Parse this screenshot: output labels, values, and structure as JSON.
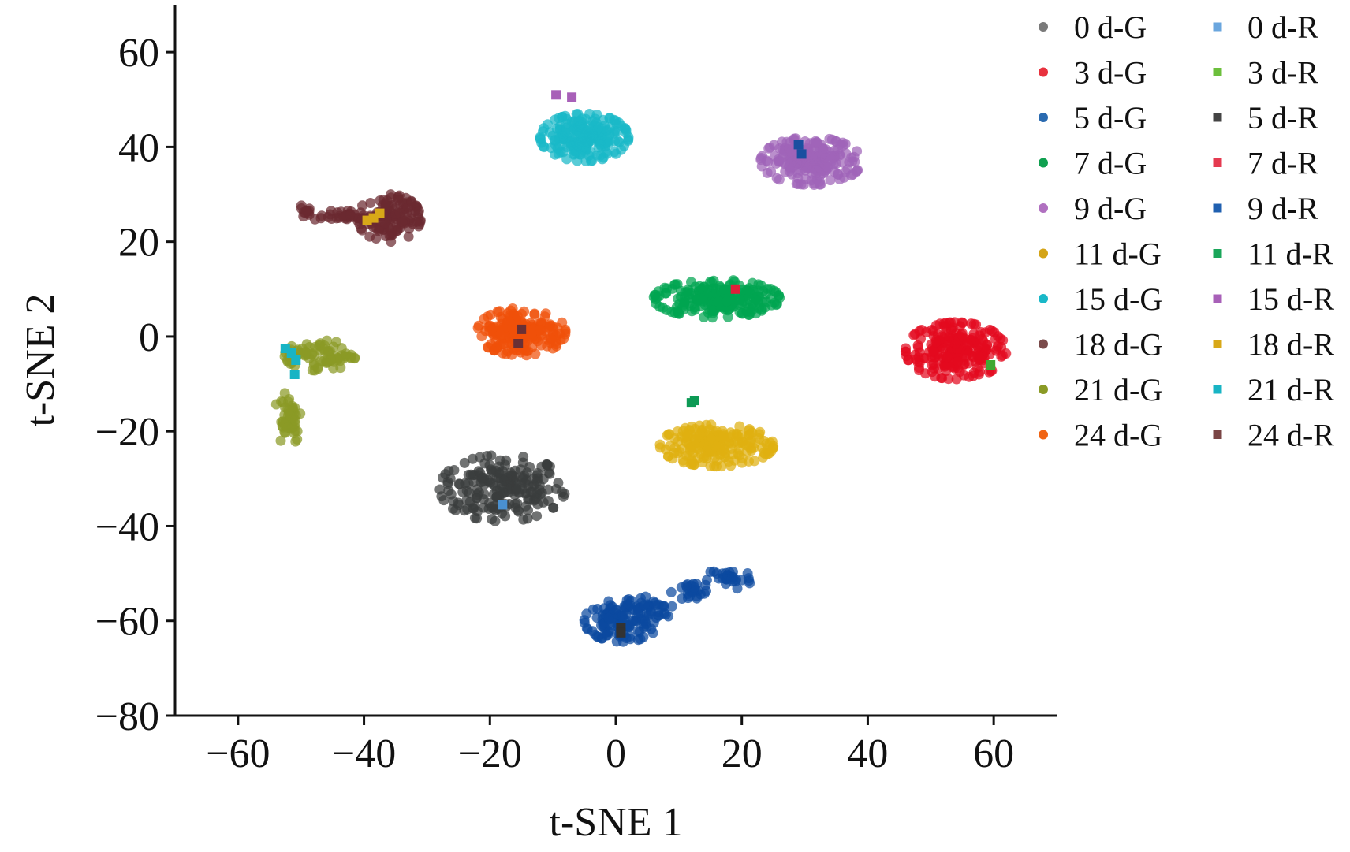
{
  "chart_data": {
    "type": "scatter",
    "title": "",
    "xlabel": "t-SNE 1",
    "ylabel": "t-SNE 2",
    "xlim": [
      -70,
      70
    ],
    "ylim": [
      -80,
      70
    ],
    "x_ticks": [
      -60,
      -40,
      -20,
      0,
      20,
      40,
      60
    ],
    "y_ticks": [
      -80,
      -60,
      -40,
      -20,
      0,
      20,
      40,
      60
    ],
    "x_tick_labels": [
      "−60",
      "−40",
      "−20",
      "0",
      "20",
      "40",
      "60"
    ],
    "y_tick_labels": [
      "−80",
      "−60",
      "−40",
      "−20",
      "0",
      "20",
      "40",
      "60"
    ],
    "grid": false,
    "legend_placement": "right, two columns",
    "series": [
      {
        "name": "0 d-G",
        "marker": "circle",
        "color": "#3a3d3d",
        "legend_color": "#7a7a7a",
        "clusters": [
          {
            "cx": -18,
            "cy": -32,
            "sx": 5,
            "sy": 3.5,
            "n": 200
          }
        ]
      },
      {
        "name": "3 d-G",
        "marker": "circle",
        "color": "#e30a1f",
        "legend_color": "#e8323e",
        "clusters": [
          {
            "cx": 54,
            "cy": -3,
            "sx": 4,
            "sy": 3,
            "n": 220
          }
        ]
      },
      {
        "name": "5 d-G",
        "marker": "circle",
        "color": "#0b4aa0",
        "legend_color": "#2a6ab0",
        "clusters": [
          {
            "cx": 1,
            "cy": -60,
            "sx": 3,
            "sy": 2.2,
            "n": 120
          },
          {
            "cx": 5,
            "cy": -57.5,
            "sx": 2,
            "sy": 1.5,
            "n": 30
          },
          {
            "cx": 12,
            "cy": -54,
            "sx": 1.6,
            "sy": 1.1,
            "n": 25
          },
          {
            "cx": 18,
            "cy": -51,
            "sx": 1.8,
            "sy": 1.2,
            "n": 30
          }
        ]
      },
      {
        "name": "7 d-G",
        "marker": "circle",
        "color": "#00a550",
        "legend_color": "#10a050",
        "clusters": [
          {
            "cx": 16,
            "cy": 8,
            "sx": 5,
            "sy": 2,
            "n": 220
          }
        ]
      },
      {
        "name": "9 d-G",
        "marker": "circle",
        "color": "#a064b8",
        "legend_color": "#b070c0",
        "clusters": [
          {
            "cx": 31,
            "cy": 37,
            "sx": 4,
            "sy": 2.5,
            "n": 200
          }
        ]
      },
      {
        "name": "11 d-G",
        "marker": "circle",
        "color": "#dfb010",
        "legend_color": "#d4a417",
        "clusters": [
          {
            "cx": 16,
            "cy": -23,
            "sx": 4.5,
            "sy": 2.2,
            "n": 200
          }
        ]
      },
      {
        "name": "15 d-G",
        "marker": "circle",
        "color": "#19b8c8",
        "legend_color": "#19b8c8",
        "clusters": [
          {
            "cx": -5,
            "cy": 42,
            "sx": 3.5,
            "sy": 2.5,
            "n": 200
          }
        ]
      },
      {
        "name": "18 d-G",
        "marker": "circle",
        "color": "#6b2a30",
        "legend_color": "#7a4a4a",
        "clusters": [
          {
            "cx": -36,
            "cy": 25,
            "sx": 2.5,
            "sy": 2.5,
            "n": 130
          },
          {
            "cx": -44,
            "cy": 25.5,
            "sx": 2.5,
            "sy": 0.6,
            "n": 30
          },
          {
            "cx": -49,
            "cy": 26.5,
            "sx": 1.2,
            "sy": 0.6,
            "n": 10
          }
        ]
      },
      {
        "name": "21 d-G",
        "marker": "circle",
        "color": "#8a9a25",
        "legend_color": "#8a9a25",
        "clusters": [
          {
            "cx": -47,
            "cy": -4,
            "sx": 2.8,
            "sy": 1.6,
            "n": 80
          },
          {
            "cx": -52,
            "cy": -17,
            "sx": 1.1,
            "sy": 3,
            "n": 50
          }
        ]
      },
      {
        "name": "24 d-G",
        "marker": "circle",
        "color": "#f0500a",
        "legend_color": "#f06414",
        "clusters": [
          {
            "cx": -15,
            "cy": 1,
            "sx": 3.5,
            "sy": 2.5,
            "n": 200
          }
        ]
      },
      {
        "name": "0 d-R",
        "marker": "square",
        "color": "#4a90d0",
        "legend_color": "#6aa6de",
        "points": [
          [
            -18,
            -35.5
          ]
        ]
      },
      {
        "name": "3 d-R",
        "marker": "square",
        "color": "#3fa832",
        "legend_color": "#6cbf3c",
        "points": [
          [
            59.5,
            -6
          ]
        ]
      },
      {
        "name": "5 d-R",
        "marker": "square",
        "color": "#333333",
        "legend_color": "#444444",
        "points": [
          [
            0.8,
            -61.5
          ],
          [
            0.8,
            -62.5
          ]
        ]
      },
      {
        "name": "7 d-R",
        "marker": "square",
        "color": "#e01f3a",
        "legend_color": "#e53a50",
        "points": [
          [
            19,
            10
          ]
        ]
      },
      {
        "name": "9 d-R",
        "marker": "square",
        "color": "#1a4fa0",
        "legend_color": "#2060b0",
        "points": [
          [
            29,
            40.5
          ],
          [
            29.5,
            38.5
          ]
        ]
      },
      {
        "name": "11 d-R",
        "marker": "square",
        "color": "#0d9a55",
        "legend_color": "#1aa65a",
        "points": [
          [
            12.5,
            -13.5
          ],
          [
            12,
            -14
          ]
        ]
      },
      {
        "name": "15 d-R",
        "marker": "square",
        "color": "#a860b8",
        "legend_color": "#a860b8",
        "points": [
          [
            -9.5,
            51
          ],
          [
            -7,
            50.5
          ]
        ]
      },
      {
        "name": "18 d-R",
        "marker": "square",
        "color": "#d8a818",
        "legend_color": "#d8a818",
        "points": [
          [
            -39.5,
            24.5
          ],
          [
            -38.5,
            25
          ],
          [
            -37.5,
            26
          ]
        ]
      },
      {
        "name": "21 d-R",
        "marker": "square",
        "color": "#18b4c4",
        "legend_color": "#18b4c4",
        "points": [
          [
            -52.5,
            -2.5
          ],
          [
            -51.5,
            -3.5
          ],
          [
            -50.8,
            -5
          ],
          [
            -51,
            -8
          ]
        ]
      },
      {
        "name": "24 d-R",
        "marker": "square",
        "color": "#6a3035",
        "legend_color": "#7a4545",
        "points": [
          [
            -15.5,
            -1.5
          ],
          [
            -15,
            1.5
          ]
        ]
      }
    ]
  }
}
